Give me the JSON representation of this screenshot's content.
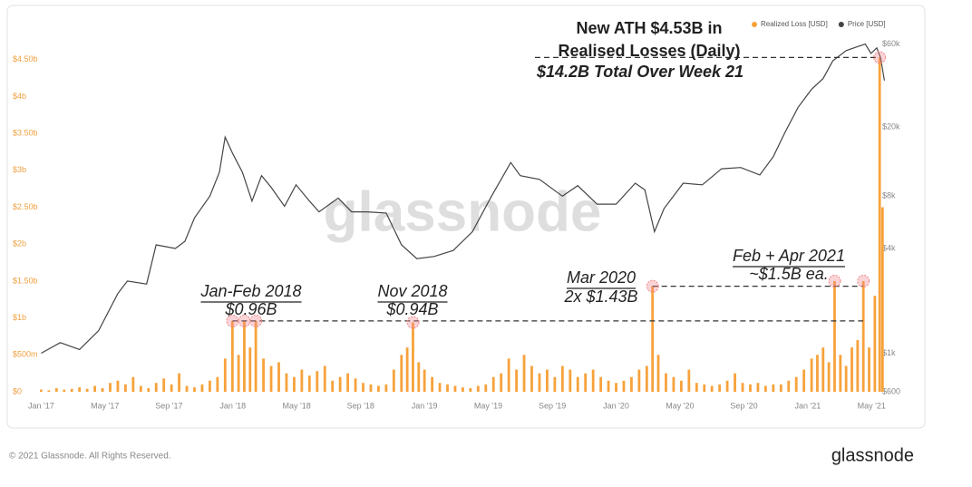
{
  "chart_data": {
    "type": "combo",
    "annotations": [
      {
        "lines": [
          "New ATH $4.53B in",
          "Realised Losses (Daily)",
          "$14.2B Total Over Week 21"
        ]
      },
      {
        "lines": [
          "Jan-Feb 2018",
          "$0.96B"
        ]
      },
      {
        "lines": [
          "Nov 2018",
          "$0.94B"
        ]
      },
      {
        "lines": [
          "Mar 2020",
          "2x $1.43B"
        ]
      },
      {
        "lines": [
          "Feb + Apr 2021",
          "~$1.5B ea."
        ]
      }
    ],
    "watermark": "glassnode",
    "footer": "© 2021 Glassnode. All Rights Reserved.",
    "brand": "glassnode",
    "grid": false,
    "legend": "top-right",
    "xlim": [
      2016.965,
      2021.45
    ],
    "xticks": [
      {
        "value": 2017.0,
        "label": "Jan '17"
      },
      {
        "value": 2017.333,
        "label": "May '17"
      },
      {
        "value": 2017.667,
        "label": "Sep '17"
      },
      {
        "value": 2018.0,
        "label": "Jan '18"
      },
      {
        "value": 2018.333,
        "label": "May '18"
      },
      {
        "value": 2018.667,
        "label": "Sep '18"
      },
      {
        "value": 2019.0,
        "label": "Jan '19"
      },
      {
        "value": 2019.333,
        "label": "May '19"
      },
      {
        "value": 2019.667,
        "label": "Sep '19"
      },
      {
        "value": 2020.0,
        "label": "Jan '20"
      },
      {
        "value": 2020.333,
        "label": "May '20"
      },
      {
        "value": 2020.667,
        "label": "Sep '20"
      },
      {
        "value": 2021.0,
        "label": "Jan '21"
      },
      {
        "value": 2021.333,
        "label": "May '21"
      }
    ],
    "ylim": [
      0,
      4.94
    ],
    "yticks": [
      {
        "value": 0,
        "label": "$0"
      },
      {
        "value": 0.5,
        "label": "$500m"
      },
      {
        "value": 1,
        "label": "$1b"
      },
      {
        "value": 1.5,
        "label": "$1.50b"
      },
      {
        "value": 2,
        "label": "$2b"
      },
      {
        "value": 2.5,
        "label": "$2.50b"
      },
      {
        "value": 3,
        "label": "$3b"
      },
      {
        "value": 3.5,
        "label": "$3.50b"
      },
      {
        "value": 4,
        "label": "$4b"
      },
      {
        "value": 4.5,
        "label": "$4.50b"
      }
    ],
    "y2lim": [
      600,
      75000
    ],
    "y2log": true,
    "y2ticks": [
      {
        "value": 600,
        "label": "$600"
      },
      {
        "value": 1000,
        "label": "$1k"
      },
      {
        "value": 4000,
        "label": "$4k"
      },
      {
        "value": 8000,
        "label": "$8k"
      },
      {
        "value": 20000,
        "label": "$20k"
      },
      {
        "value": 60000,
        "label": "$60k"
      }
    ],
    "series": [
      {
        "name": "Realized Loss [USD]",
        "type": "bar",
        "color": "#f7a23b",
        "axis": "y",
        "x": [
          2017.0,
          2017.04,
          2017.08,
          2017.12,
          2017.16,
          2017.2,
          2017.24,
          2017.28,
          2017.32,
          2017.36,
          2017.4,
          2017.44,
          2017.48,
          2017.52,
          2017.56,
          2017.6,
          2017.64,
          2017.68,
          2017.72,
          2017.76,
          2017.8,
          2017.84,
          2017.88,
          2017.92,
          2017.96,
          2017.998,
          2018.03,
          2018.06,
          2018.09,
          2018.12,
          2018.16,
          2018.2,
          2018.24,
          2018.28,
          2018.32,
          2018.36,
          2018.4,
          2018.44,
          2018.48,
          2018.52,
          2018.56,
          2018.6,
          2018.64,
          2018.68,
          2018.72,
          2018.76,
          2018.8,
          2018.84,
          2018.88,
          2018.91,
          2018.94,
          2018.97,
          2019.0,
          2019.04,
          2019.08,
          2019.12,
          2019.16,
          2019.2,
          2019.24,
          2019.28,
          2019.32,
          2019.36,
          2019.4,
          2019.44,
          2019.48,
          2019.52,
          2019.56,
          2019.6,
          2019.64,
          2019.68,
          2019.72,
          2019.76,
          2019.8,
          2019.84,
          2019.88,
          2019.92,
          2019.96,
          2020.0,
          2020.04,
          2020.08,
          2020.12,
          2020.16,
          2020.19,
          2020.22,
          2020.26,
          2020.3,
          2020.34,
          2020.38,
          2020.42,
          2020.46,
          2020.5,
          2020.54,
          2020.58,
          2020.62,
          2020.66,
          2020.7,
          2020.74,
          2020.78,
          2020.82,
          2020.86,
          2020.9,
          2020.94,
          2020.98,
          2021.02,
          2021.05,
          2021.08,
          2021.11,
          2021.14,
          2021.17,
          2021.2,
          2021.23,
          2021.26,
          2021.29,
          2021.32,
          2021.35,
          2021.375,
          2021.39
        ],
        "values": [
          0.03,
          0.02,
          0.05,
          0.03,
          0.04,
          0.06,
          0.04,
          0.08,
          0.05,
          0.12,
          0.15,
          0.1,
          0.2,
          0.08,
          0.05,
          0.12,
          0.18,
          0.1,
          0.25,
          0.08,
          0.06,
          0.1,
          0.15,
          0.2,
          0.45,
          0.96,
          0.5,
          0.96,
          0.6,
          0.96,
          0.45,
          0.35,
          0.4,
          0.25,
          0.2,
          0.3,
          0.22,
          0.28,
          0.35,
          0.15,
          0.2,
          0.25,
          0.18,
          0.12,
          0.1,
          0.08,
          0.1,
          0.3,
          0.5,
          0.6,
          0.94,
          0.4,
          0.3,
          0.2,
          0.12,
          0.1,
          0.08,
          0.06,
          0.05,
          0.08,
          0.1,
          0.2,
          0.25,
          0.45,
          0.3,
          0.5,
          0.35,
          0.25,
          0.3,
          0.2,
          0.35,
          0.3,
          0.2,
          0.25,
          0.3,
          0.2,
          0.15,
          0.12,
          0.15,
          0.2,
          0.3,
          0.35,
          1.43,
          0.5,
          0.25,
          0.2,
          0.15,
          0.3,
          0.12,
          0.1,
          0.08,
          0.1,
          0.15,
          0.25,
          0.12,
          0.1,
          0.12,
          0.08,
          0.1,
          0.1,
          0.15,
          0.2,
          0.3,
          0.45,
          0.5,
          0.6,
          0.4,
          1.5,
          0.5,
          0.35,
          0.6,
          0.7,
          1.5,
          0.6,
          1.3,
          4.53,
          2.5
        ]
      },
      {
        "name": "Price [USD]",
        "type": "line",
        "color": "#444444",
        "axis": "y2",
        "x": [
          2017.0,
          2017.1,
          2017.2,
          2017.3,
          2017.4,
          2017.45,
          2017.55,
          2017.6,
          2017.7,
          2017.75,
          2017.8,
          2017.88,
          2017.93,
          2017.96,
          2018.0,
          2018.05,
          2018.1,
          2018.15,
          2018.2,
          2018.27,
          2018.33,
          2018.4,
          2018.45,
          2018.55,
          2018.62,
          2018.7,
          2018.8,
          2018.88,
          2018.96,
          2019.05,
          2019.15,
          2019.25,
          2019.35,
          2019.45,
          2019.5,
          2019.6,
          2019.72,
          2019.8,
          2019.9,
          2020.0,
          2020.1,
          2020.15,
          2020.2,
          2020.25,
          2020.35,
          2020.45,
          2020.55,
          2020.65,
          2020.75,
          2020.82,
          2020.88,
          2020.95,
          2021.02,
          2021.08,
          2021.13,
          2021.2,
          2021.26,
          2021.3,
          2021.33,
          2021.36,
          2021.38,
          2021.4
        ],
        "values": [
          1000,
          1150,
          1050,
          1350,
          2200,
          2600,
          2500,
          4200,
          4000,
          4400,
          6000,
          8000,
          11000,
          17500,
          14000,
          11000,
          7500,
          10500,
          9000,
          7000,
          9300,
          7500,
          6500,
          7800,
          6500,
          6500,
          6400,
          4200,
          3500,
          3600,
          3900,
          5000,
          8000,
          12500,
          10500,
          10000,
          8000,
          9200,
          7200,
          7200,
          9500,
          8700,
          5000,
          6800,
          9500,
          9300,
          11500,
          11700,
          10600,
          13500,
          18500,
          26000,
          33000,
          38000,
          48000,
          55000,
          58000,
          60000,
          53000,
          57000,
          50000,
          37000
        ]
      }
    ]
  }
}
